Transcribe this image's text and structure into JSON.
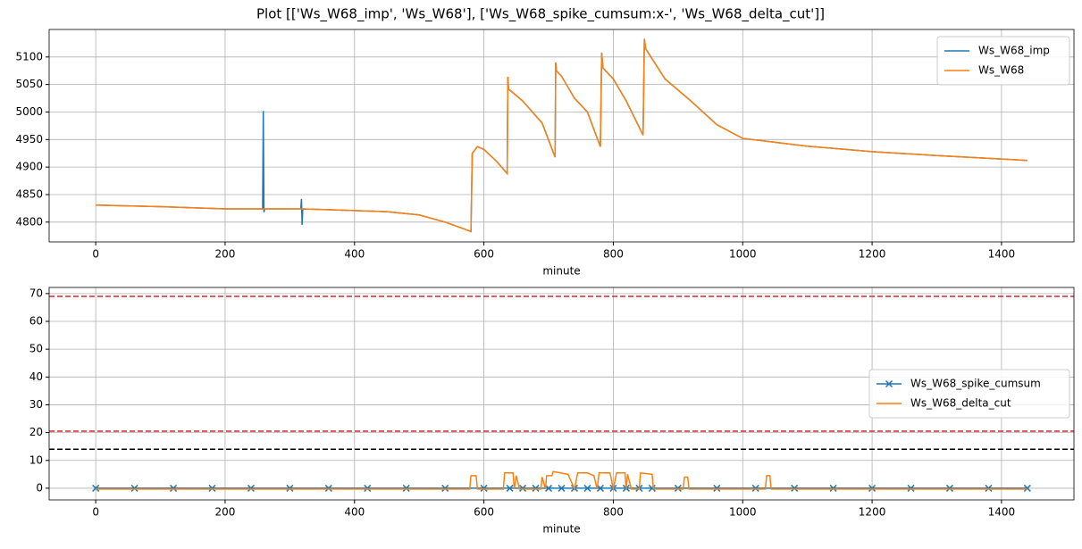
{
  "title": "Plot [['Ws_W68_imp', 'Ws_W68'], ['Ws_W68_spike_cumsum:x-', 'Ws_W68_delta_cut']]",
  "chart_data": [
    {
      "type": "line",
      "xlabel": "minute",
      "xlim": [
        -72,
        1512
      ],
      "xticks": [
        0,
        200,
        400,
        600,
        800,
        1000,
        1200,
        1400
      ],
      "ylim": [
        4764,
        5150
      ],
      "yticks": [
        4800,
        4850,
        4900,
        4950,
        5000,
        5050,
        5100
      ],
      "grid": true,
      "legend": "upper right",
      "series": [
        {
          "name": "Ws_W68_imp",
          "color": "#1f77b4",
          "x": [
            0,
            100,
            200,
            258,
            259,
            260,
            261,
            317,
            318,
            319,
            320,
            400,
            450,
            500,
            540,
            580,
            582,
            590,
            600,
            620,
            636,
            637,
            638,
            660,
            690,
            710,
            711,
            712,
            720,
            740,
            760,
            780,
            782,
            784,
            800,
            820,
            846,
            848,
            850,
            880,
            900,
            920,
            960,
            1000,
            1050,
            1100,
            1200,
            1300,
            1440
          ],
          "values": [
            4831,
            4828,
            4824,
            4824,
            5002,
            4818,
            4824,
            4824,
            4842,
            4795,
            4824,
            4821,
            4819,
            4813,
            4800,
            4783,
            4925,
            4937,
            4932,
            4910,
            4888,
            5064,
            5042,
            5020,
            4980,
            4918,
            5090,
            5075,
            5065,
            5025,
            5000,
            4937,
            5108,
            5080,
            5060,
            5020,
            4958,
            5133,
            5115,
            5060,
            5040,
            5020,
            4977,
            4952,
            4945,
            4938,
            4928,
            4921,
            4912
          ]
        },
        {
          "name": "Ws_W68",
          "color": "#ff7f0e",
          "x": [
            0,
            100,
            200,
            260,
            320,
            400,
            450,
            500,
            540,
            580,
            582,
            590,
            600,
            620,
            636,
            637,
            638,
            660,
            690,
            710,
            711,
            712,
            720,
            740,
            760,
            780,
            782,
            784,
            800,
            820,
            846,
            848,
            850,
            880,
            900,
            920,
            960,
            1000,
            1050,
            1100,
            1200,
            1300,
            1440
          ],
          "values": [
            4831,
            4828,
            4824,
            4824,
            4824,
            4821,
            4819,
            4813,
            4800,
            4783,
            4925,
            4937,
            4932,
            4910,
            4888,
            5064,
            5042,
            5020,
            4980,
            4918,
            5090,
            5075,
            5065,
            5025,
            5000,
            4937,
            5108,
            5080,
            5060,
            5020,
            4958,
            5133,
            5115,
            5060,
            5040,
            5020,
            4977,
            4952,
            4945,
            4938,
            4928,
            4921,
            4912
          ]
        }
      ]
    },
    {
      "type": "line",
      "xlabel": "minute",
      "xlim": [
        -72,
        1512
      ],
      "xticks": [
        0,
        200,
        400,
        600,
        800,
        1000,
        1200,
        1400
      ],
      "ylim": [
        -4.2,
        72.2
      ],
      "yticks": [
        0,
        10,
        20,
        30,
        40,
        50,
        60,
        70
      ],
      "grid": true,
      "legend": "center right",
      "hlines": [
        {
          "value": 69,
          "color": "#d62728"
        },
        {
          "value": 20.5,
          "color": "#d62728"
        },
        {
          "value": 14,
          "color": "#000000"
        }
      ],
      "series": [
        {
          "name": "Ws_W68_spike_cumsum",
          "color": "#1f77b4",
          "marker": "x",
          "x": [
            0,
            60,
            120,
            180,
            240,
            300,
            360,
            420,
            480,
            540,
            600,
            640,
            660,
            680,
            700,
            720,
            740,
            760,
            780,
            800,
            820,
            840,
            860,
            900,
            960,
            1020,
            1080,
            1140,
            1200,
            1260,
            1320,
            1380,
            1440
          ],
          "values": [
            0,
            0,
            0,
            0,
            0,
            0,
            0,
            0,
            0,
            0,
            0,
            0,
            0,
            0,
            0,
            0,
            0,
            0,
            0,
            0,
            0,
            0,
            0,
            0,
            0,
            0,
            0,
            0,
            0,
            0,
            0,
            0,
            0
          ]
        },
        {
          "name": "Ws_W68_delta_cut",
          "color": "#ff7f0e",
          "x": [
            0,
            578,
            580,
            588,
            590,
            630,
            632,
            645,
            647,
            650,
            655,
            688,
            690,
            695,
            697,
            705,
            707,
            730,
            740,
            745,
            760,
            770,
            775,
            778,
            795,
            800,
            805,
            818,
            820,
            822,
            828,
            840,
            842,
            860,
            862,
            908,
            910,
            915,
            917,
            1035,
            1037,
            1042,
            1044,
            1440
          ],
          "values": [
            -0.3,
            -0.3,
            4.5,
            4.5,
            -0.3,
            -0.3,
            5.5,
            5.5,
            -0.3,
            4.5,
            -0.3,
            -0.3,
            4,
            -0.3,
            4.5,
            4.5,
            6,
            5,
            -0.3,
            5.5,
            5.5,
            4.5,
            -0.3,
            5.5,
            5.5,
            -0.3,
            5.5,
            5.5,
            -0.3,
            5,
            -0.3,
            -0.3,
            5.5,
            5,
            -0.3,
            -0.3,
            4,
            4,
            -0.3,
            -0.3,
            4.5,
            4.5,
            -0.3,
            -0.3
          ]
        }
      ]
    }
  ]
}
